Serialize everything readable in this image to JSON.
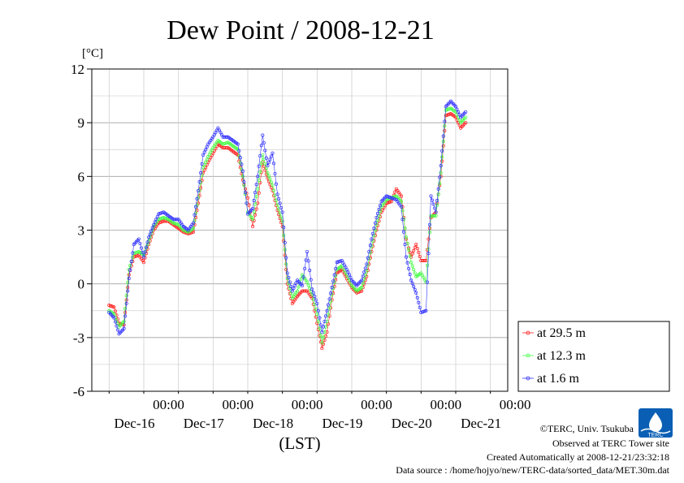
{
  "chart_data": {
    "type": "line",
    "title": "Dew Point / 2008-12-21",
    "ylabel": "[°C]",
    "xlabel": "(LST)",
    "ylim": [
      -6,
      12
    ],
    "yticks": [
      -6,
      -3,
      0,
      3,
      6,
      9,
      12
    ],
    "ytick_labels": [
      "-6",
      "-3",
      "0",
      "3",
      "6",
      "9",
      "12"
    ],
    "xlim_hours": [
      -7,
      161
    ],
    "xticks": [
      {
        "hour": 24,
        "time": "00:00",
        "date": "Dec-16"
      },
      {
        "hour": 52,
        "time": "00:00",
        "date": "Dec-17"
      },
      {
        "hour": 80,
        "time": "00:00",
        "date": "Dec-18"
      },
      {
        "hour": 108,
        "time": "00:00",
        "date": "Dec-19"
      },
      {
        "hour": 136,
        "time": "00:00",
        "date": "Dec-20"
      },
      {
        "hour": 164,
        "time": "00:00",
        "date": "Dec-21"
      }
    ],
    "grid": true,
    "legend_position": "right-bottom",
    "x_unit": "hours since 2008-12-15 00:00 LST",
    "series": [
      {
        "name": "at 29.5 m",
        "color": "#ff2020",
        "points": [
          [
            0,
            -1.2
          ],
          [
            2,
            -1.3
          ],
          [
            4,
            -2.2
          ],
          [
            6,
            -2.3
          ],
          [
            8,
            0.5
          ],
          [
            10,
            1.5
          ],
          [
            12,
            1.6
          ],
          [
            14,
            1.2
          ],
          [
            16,
            2.2
          ],
          [
            18,
            3.0
          ],
          [
            20,
            3.4
          ],
          [
            22,
            3.5
          ],
          [
            24,
            3.5
          ],
          [
            26,
            3.3
          ],
          [
            28,
            3.1
          ],
          [
            30,
            2.9
          ],
          [
            32,
            2.8
          ],
          [
            34,
            2.9
          ],
          [
            36,
            4.5
          ],
          [
            38,
            6.2
          ],
          [
            40,
            6.8
          ],
          [
            42,
            7.3
          ],
          [
            44,
            7.8
          ],
          [
            46,
            7.6
          ],
          [
            48,
            7.6
          ],
          [
            50,
            7.4
          ],
          [
            52,
            7.2
          ],
          [
            54,
            5.8
          ],
          [
            56,
            4.8
          ],
          [
            58,
            3.2
          ],
          [
            60,
            4.5
          ],
          [
            62,
            6.8
          ],
          [
            64,
            5.9
          ],
          [
            66,
            5.2
          ],
          [
            68,
            4.1
          ],
          [
            70,
            3.2
          ],
          [
            72,
            0
          ],
          [
            74,
            -1.1
          ],
          [
            76,
            -0.7
          ],
          [
            78,
            -0.4
          ],
          [
            80,
            -0.4
          ],
          [
            82,
            -0.8
          ],
          [
            84,
            -2.2
          ],
          [
            86,
            -3.6
          ],
          [
            88,
            -2.7
          ],
          [
            90,
            -0.9
          ],
          [
            92,
            0.6
          ],
          [
            94,
            0.8
          ],
          [
            96,
            0.3
          ],
          [
            98,
            -0.2
          ],
          [
            100,
            -0.5
          ],
          [
            102,
            -0.4
          ],
          [
            104,
            0.4
          ],
          [
            106,
            1.8
          ],
          [
            108,
            3.0
          ],
          [
            110,
            4.0
          ],
          [
            112,
            4.5
          ],
          [
            114,
            4.6
          ],
          [
            116,
            5.3
          ],
          [
            118,
            4.9
          ],
          [
            120,
            2.5
          ],
          [
            122,
            1.5
          ],
          [
            124,
            2.2
          ],
          [
            126,
            1.3
          ],
          [
            128,
            1.3
          ],
          [
            130,
            3.7
          ],
          [
            132,
            4.0
          ],
          [
            134,
            6.0
          ],
          [
            136,
            9.4
          ],
          [
            138,
            9.5
          ],
          [
            140,
            9.3
          ],
          [
            142,
            8.7
          ],
          [
            144,
            9.0
          ]
        ]
      },
      {
        "name": "at 12.3 m",
        "color": "#40ff40",
        "points": [
          [
            0,
            -1.5
          ],
          [
            2,
            -1.7
          ],
          [
            4,
            -2.4
          ],
          [
            6,
            -2.1
          ],
          [
            8,
            0.8
          ],
          [
            10,
            1.7
          ],
          [
            12,
            1.8
          ],
          [
            14,
            1.6
          ],
          [
            16,
            2.4
          ],
          [
            18,
            3.2
          ],
          [
            20,
            3.6
          ],
          [
            22,
            3.7
          ],
          [
            24,
            3.6
          ],
          [
            26,
            3.4
          ],
          [
            28,
            3.3
          ],
          [
            30,
            3.0
          ],
          [
            32,
            2.9
          ],
          [
            34,
            3.1
          ],
          [
            36,
            4.8
          ],
          [
            38,
            6.5
          ],
          [
            40,
            7.1
          ],
          [
            42,
            7.6
          ],
          [
            44,
            8.0
          ],
          [
            46,
            7.8
          ],
          [
            48,
            7.9
          ],
          [
            50,
            7.7
          ],
          [
            52,
            7.5
          ],
          [
            54,
            6.0
          ],
          [
            56,
            4.0
          ],
          [
            58,
            3.6
          ],
          [
            60,
            5.3
          ],
          [
            62,
            7.2
          ],
          [
            64,
            6.2
          ],
          [
            66,
            5.5
          ],
          [
            68,
            4.4
          ],
          [
            70,
            3.5
          ],
          [
            72,
            0.3
          ],
          [
            74,
            -0.8
          ],
          [
            76,
            -0.4
          ],
          [
            78,
            0.5
          ],
          [
            80,
            0.1
          ],
          [
            82,
            -0.6
          ],
          [
            84,
            -1.7
          ],
          [
            86,
            -3.3
          ],
          [
            88,
            -2.1
          ],
          [
            90,
            -0.6
          ],
          [
            92,
            0.8
          ],
          [
            94,
            1.0
          ],
          [
            96,
            0.5
          ],
          [
            98,
            -0.1
          ],
          [
            100,
            -0.4
          ],
          [
            102,
            -0.2
          ],
          [
            104,
            0.7
          ],
          [
            106,
            2.1
          ],
          [
            108,
            3.3
          ],
          [
            110,
            4.3
          ],
          [
            112,
            4.7
          ],
          [
            114,
            4.8
          ],
          [
            116,
            4.9
          ],
          [
            118,
            4.6
          ],
          [
            120,
            2.6
          ],
          [
            122,
            1.2
          ],
          [
            124,
            0.4
          ],
          [
            126,
            0.6
          ],
          [
            128,
            0.1
          ],
          [
            130,
            3.8
          ],
          [
            132,
            3.8
          ],
          [
            134,
            6.2
          ],
          [
            136,
            9.7
          ],
          [
            138,
            9.8
          ],
          [
            140,
            9.6
          ],
          [
            142,
            9.0
          ],
          [
            144,
            9.3
          ]
        ]
      },
      {
        "name": "at 1.6 m",
        "color": "#3030ff",
        "points": [
          [
            0,
            -1.6
          ],
          [
            2,
            -1.9
          ],
          [
            4,
            -2.8
          ],
          [
            6,
            -2.5
          ],
          [
            8,
            0.3
          ],
          [
            10,
            2.2
          ],
          [
            12,
            2.5
          ],
          [
            14,
            1.5
          ],
          [
            16,
            2.6
          ],
          [
            18,
            3.3
          ],
          [
            20,
            3.9
          ],
          [
            22,
            4.0
          ],
          [
            24,
            3.8
          ],
          [
            26,
            3.6
          ],
          [
            28,
            3.6
          ],
          [
            30,
            3.2
          ],
          [
            32,
            3.0
          ],
          [
            34,
            3.4
          ],
          [
            36,
            5.2
          ],
          [
            38,
            7.2
          ],
          [
            40,
            7.8
          ],
          [
            42,
            8.2
          ],
          [
            44,
            8.7
          ],
          [
            46,
            8.2
          ],
          [
            48,
            8.2
          ],
          [
            50,
            8.0
          ],
          [
            52,
            7.8
          ],
          [
            54,
            6.3
          ],
          [
            56,
            3.9
          ],
          [
            58,
            4.2
          ],
          [
            60,
            6.0
          ],
          [
            62,
            8.3
          ],
          [
            64,
            6.6
          ],
          [
            66,
            7.3
          ],
          [
            68,
            5.0
          ],
          [
            70,
            4.0
          ],
          [
            72,
            0.6
          ],
          [
            74,
            -0.4
          ],
          [
            76,
            0.2
          ],
          [
            78,
            -0.1
          ],
          [
            80,
            1.8
          ],
          [
            82,
            -0.3
          ],
          [
            84,
            -1.1
          ],
          [
            86,
            -2.7
          ],
          [
            88,
            -1.5
          ],
          [
            90,
            -0.2
          ],
          [
            92,
            1.2
          ],
          [
            94,
            1.3
          ],
          [
            96,
            0.8
          ],
          [
            98,
            0.2
          ],
          [
            100,
            -0.1
          ],
          [
            102,
            0.2
          ],
          [
            104,
            1.1
          ],
          [
            106,
            2.5
          ],
          [
            108,
            3.7
          ],
          [
            110,
            4.6
          ],
          [
            112,
            4.9
          ],
          [
            114,
            4.8
          ],
          [
            116,
            4.7
          ],
          [
            118,
            4.3
          ],
          [
            120,
            1.5
          ],
          [
            122,
            0.2
          ],
          [
            124,
            -0.5
          ],
          [
            126,
            -1.6
          ],
          [
            128,
            -1.5
          ],
          [
            130,
            4.9
          ],
          [
            132,
            4.0
          ],
          [
            134,
            6.6
          ],
          [
            136,
            9.9
          ],
          [
            138,
            10.2
          ],
          [
            140,
            9.9
          ],
          [
            142,
            9.3
          ],
          [
            144,
            9.6
          ]
        ]
      }
    ]
  },
  "footer": {
    "copyright": "©TERC, Univ. Tsukuba",
    "observed": "Observed at TERC Tower site",
    "created": "Created Automatically at 2008-12-21/23:32:18",
    "source": "Data source : /home/hojyo/new/TERC-data/sorted_data/MET.30m.dat",
    "logo_text": "TERC"
  }
}
